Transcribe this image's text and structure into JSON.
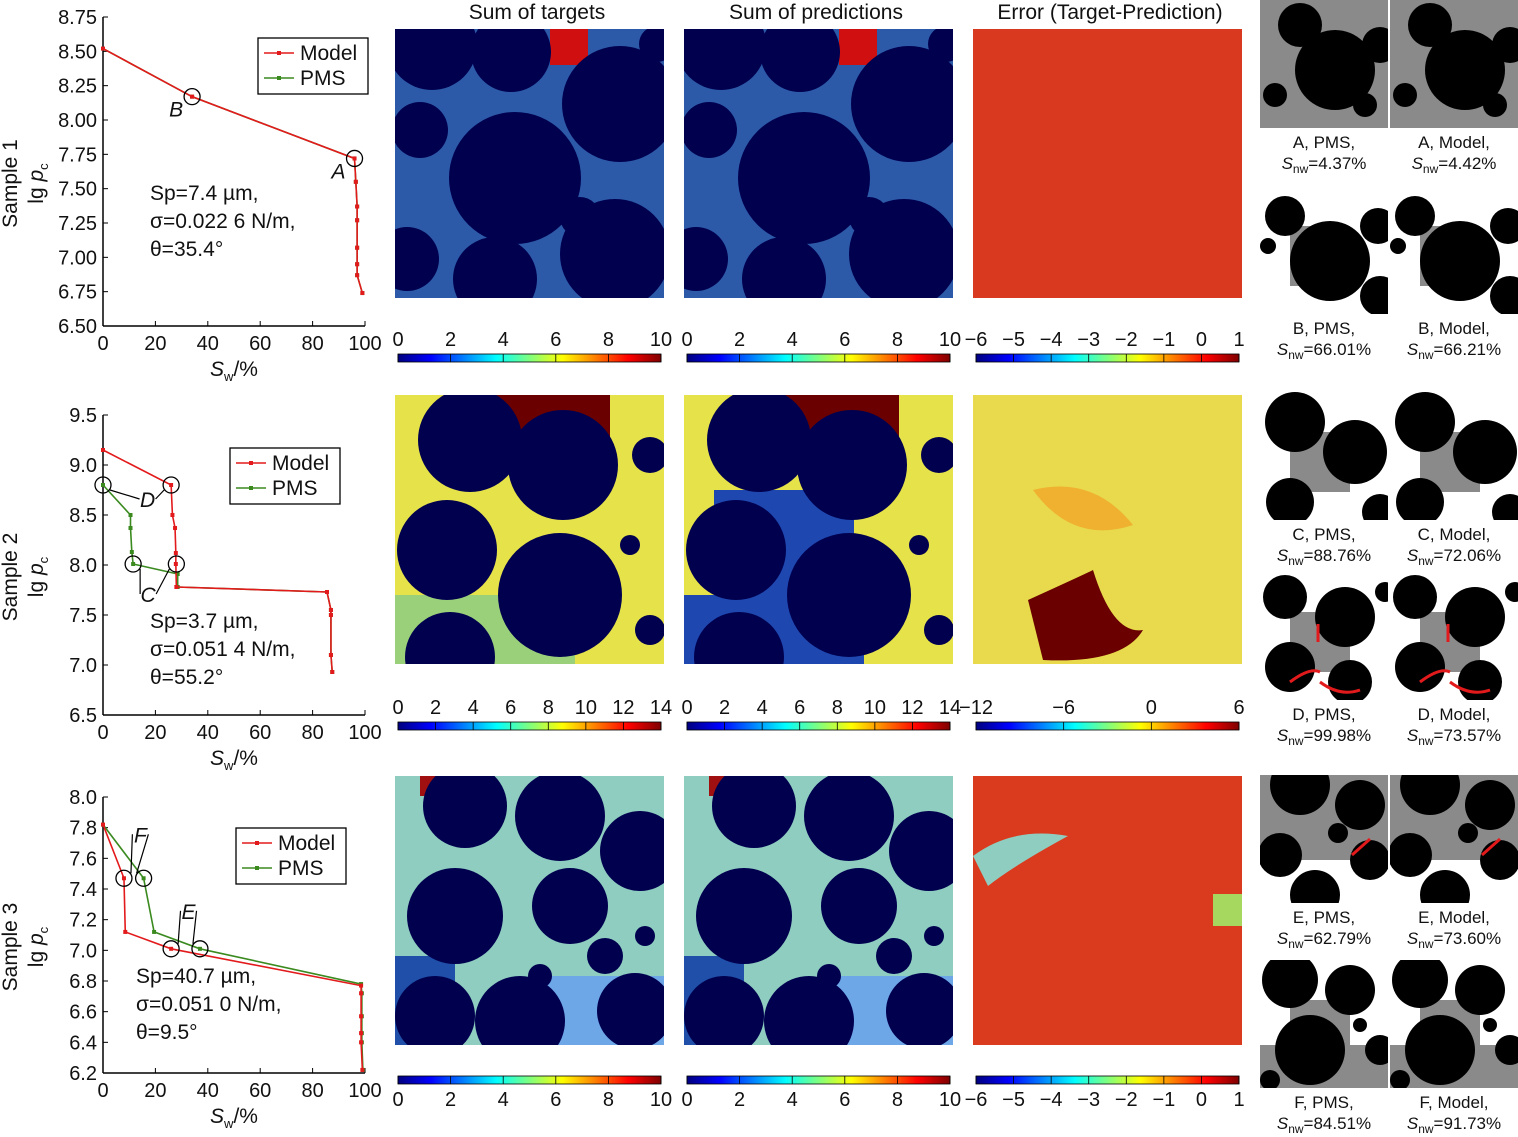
{
  "colors": {
    "model": "#e31a1c",
    "pms": "#3a8a1f",
    "pore": "#00004f"
  },
  "column_titles": [
    "Sum of targets",
    "Sum of predictions",
    "Error (Target-Prediction)"
  ],
  "chart_data": [
    {
      "type": "line",
      "row_label": "Sample 1",
      "ylabel": "lg p_c",
      "ylabel_main": "lg ",
      "ylabel_var": "p",
      "ylabel_sub": "c",
      "xlabel_var": "S",
      "xlabel_sub": "w",
      "xlabel_unit": "/%",
      "xlim": [
        0,
        100
      ],
      "ylim": [
        6.5,
        8.75
      ],
      "xticks": [
        "0",
        "20",
        "40",
        "60",
        "80",
        "100"
      ],
      "yticks": [
        "6.50",
        "6.75",
        "7.00",
        "7.25",
        "7.50",
        "7.75",
        "8.00",
        "8.25",
        "8.50",
        "8.75"
      ],
      "legend": [
        "Model",
        "PMS"
      ],
      "legend_position": "top-right",
      "params": [
        "Sp=7.4 µm,",
        "σ=0.022 6 N/m,",
        "θ=35.4°"
      ],
      "series": [
        {
          "name": "Model",
          "x": [
            0,
            34,
            96,
            96.5,
            97,
            97,
            97,
            97,
            97,
            99
          ],
          "y": [
            8.52,
            8.17,
            7.72,
            7.55,
            7.37,
            7.27,
            7.07,
            6.95,
            6.87,
            6.74
          ]
        },
        {
          "name": "PMS",
          "x": [
            0,
            34,
            96,
            96.5,
            97,
            97,
            97,
            97,
            97,
            99
          ],
          "y": [
            8.52,
            8.17,
            7.72,
            7.55,
            7.37,
            7.27,
            7.07,
            6.95,
            6.87,
            6.74
          ]
        }
      ],
      "annotations": [
        {
          "label": "B",
          "points": [
            [
              34,
              8.17
            ]
          ]
        },
        {
          "label": "A",
          "points": [
            [
              96,
              7.72
            ]
          ]
        }
      ]
    },
    {
      "type": "line",
      "row_label": "Sample 2",
      "ylabel": "lg p_c",
      "xlabel_var": "S",
      "xlabel_sub": "w",
      "xlabel_unit": "/%",
      "xlim": [
        0,
        100
      ],
      "ylim": [
        6.5,
        9.5
      ],
      "xticks": [
        "0",
        "20",
        "40",
        "60",
        "80",
        "100"
      ],
      "yticks": [
        "6.5",
        "7.0",
        "7.5",
        "8.0",
        "8.5",
        "9.0",
        "9.5"
      ],
      "legend": [
        "Model",
        "PMS"
      ],
      "legend_position": "top-right",
      "params": [
        "Sp=3.7 µm,",
        "σ=0.051 4 N/m,",
        "θ=55.2°"
      ],
      "series": [
        {
          "name": "Model",
          "x": [
            0,
            26,
            26.5,
            27.5,
            27.8,
            27.8,
            28,
            85.5,
            87,
            87,
            87,
            87.5
          ],
          "y": [
            9.15,
            8.8,
            8.5,
            8.37,
            8.12,
            8.01,
            7.78,
            7.73,
            7.55,
            7.5,
            7.1,
            6.93
          ]
        },
        {
          "name": "PMS",
          "x": [
            0,
            10.5,
            10.5,
            11,
            11.5,
            28.5,
            28.5,
            85.5,
            87,
            87,
            87,
            87.5
          ],
          "y": [
            8.8,
            8.5,
            8.37,
            8.13,
            8.01,
            7.91,
            7.78,
            7.73,
            7.55,
            7.5,
            7.1,
            6.93
          ]
        }
      ],
      "annotations": [
        {
          "label": "D",
          "points": [
            [
              0,
              8.8
            ],
            [
              26,
              8.8
            ]
          ]
        },
        {
          "label": "C",
          "points": [
            [
              11.5,
              8.01
            ],
            [
              28,
              8.01
            ]
          ]
        }
      ]
    },
    {
      "type": "line",
      "row_label": "Sample 3",
      "ylabel": "lg p_c",
      "xlabel_var": "S",
      "xlabel_sub": "w",
      "xlabel_unit": "/%",
      "xlim": [
        0,
        100
      ],
      "ylim": [
        6.2,
        8.0
      ],
      "xticks": [
        "0",
        "20",
        "40",
        "60",
        "80",
        "100"
      ],
      "yticks": [
        "6.2",
        "6.4",
        "6.6",
        "6.8",
        "7.0",
        "7.2",
        "7.4",
        "7.6",
        "7.8",
        "8.0"
      ],
      "legend": [
        "Model",
        "PMS"
      ],
      "legend_position": "top-right",
      "params": [
        "Sp=40.7 µm,",
        "σ=0.051 0 N/m,",
        "θ=9.5°"
      ],
      "series": [
        {
          "name": "Model",
          "x": [
            0,
            8,
            8.5,
            26,
            98.5,
            98.5,
            98.5,
            98.5,
            98.5,
            99
          ],
          "y": [
            7.82,
            7.47,
            7.12,
            7.01,
            6.77,
            6.72,
            6.57,
            6.46,
            6.4,
            6.22
          ]
        },
        {
          "name": "PMS",
          "x": [
            0,
            15.5,
            19.5,
            37,
            98.5,
            98.8,
            98.8,
            98.8,
            98.8,
            99.2
          ],
          "y": [
            7.82,
            7.47,
            7.12,
            7.01,
            6.78,
            6.72,
            6.57,
            6.46,
            6.4,
            6.22
          ]
        }
      ],
      "annotations": [
        {
          "label": "F",
          "points": [
            [
              8,
              7.47
            ],
            [
              15.5,
              7.47
            ]
          ]
        },
        {
          "label": "E",
          "points": [
            [
              26,
              7.01
            ],
            [
              37,
              7.01
            ]
          ]
        }
      ]
    }
  ],
  "colorbars": [
    [
      [
        "0",
        "2",
        "4",
        "6",
        "8",
        "10"
      ],
      [
        "0",
        "2",
        "4",
        "6",
        "8",
        "10"
      ],
      [
        "−6",
        "−5",
        "−4",
        "−3",
        "−2",
        "−1",
        "0",
        "1"
      ]
    ],
    [
      [
        "0",
        "2",
        "4",
        "6",
        "8",
        "10",
        "12",
        "14"
      ],
      [
        "0",
        "2",
        "4",
        "6",
        "8",
        "10",
        "12",
        "14"
      ],
      [
        "−12",
        "−6",
        "0",
        "6"
      ]
    ],
    [
      [
        "0",
        "2",
        "4",
        "6",
        "8",
        "10"
      ],
      [
        "0",
        "2",
        "4",
        "6",
        "8",
        "10"
      ],
      [
        "−6",
        "−5",
        "−4",
        "−3",
        "−2",
        "−1",
        "0",
        "1"
      ]
    ]
  ],
  "thumbnails": [
    {
      "point": "A",
      "src": "PMS",
      "snw": "4.37%"
    },
    {
      "point": "A",
      "src": "Model",
      "snw": "4.42%"
    },
    {
      "point": "B",
      "src": "PMS",
      "snw": "66.01%"
    },
    {
      "point": "B",
      "src": "Model",
      "snw": "66.21%"
    },
    {
      "point": "C",
      "src": "PMS",
      "snw": "88.76%"
    },
    {
      "point": "C",
      "src": "Model",
      "snw": "72.06%"
    },
    {
      "point": "D",
      "src": "PMS",
      "snw": "99.98%"
    },
    {
      "point": "D",
      "src": "Model",
      "snw": "73.57%"
    },
    {
      "point": "E",
      "src": "PMS",
      "snw": "62.79%"
    },
    {
      "point": "E",
      "src": "Model",
      "snw": "73.60%"
    },
    {
      "point": "F",
      "src": "PMS",
      "snw": "84.51%"
    },
    {
      "point": "F",
      "src": "Model",
      "snw": "91.73%"
    }
  ],
  "snw_symbol": {
    "var": "S",
    "sub": "nw"
  }
}
